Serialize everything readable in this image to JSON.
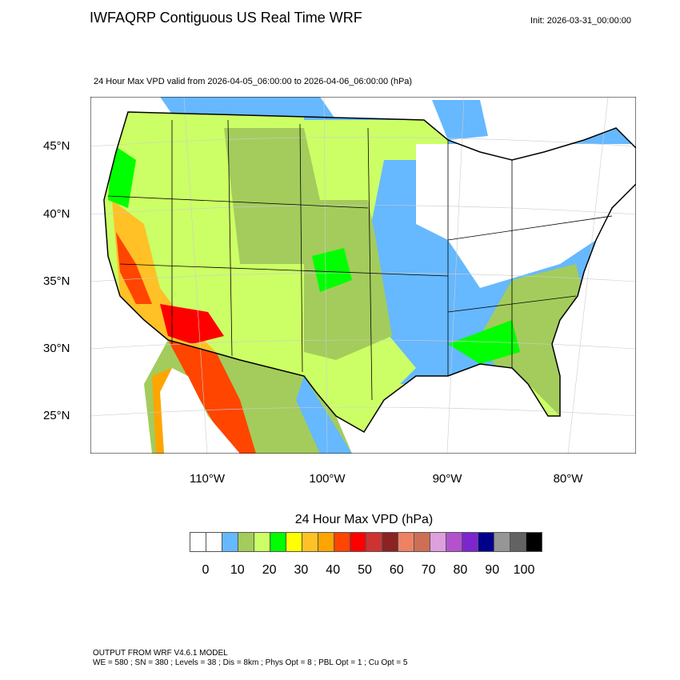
{
  "header": {
    "title": "IWFAQRP Contiguous US Real Time WRF",
    "init": "Init: 2026-03-31_00:00:00"
  },
  "subtitle": "24 Hour Max VPD valid from 2026-04-05_06:00:00 to 2026-04-06_06:00:00   (hPa)",
  "map": {
    "lat_labels": [
      "45°N",
      "40°N",
      "35°N",
      "30°N",
      "25°N"
    ],
    "lon_labels": [
      "110°W",
      "100°W",
      "90°W",
      "80°W"
    ]
  },
  "colorbar": {
    "title": "24 Hour Max VPD  (hPa)",
    "colors": [
      "#ffffff",
      "#ffffff",
      "#66b8ff",
      "#a3cc5c",
      "#ccff66",
      "#00ff00",
      "#ffff00",
      "#ffc125",
      "#ffa500",
      "#ff4500",
      "#ff0000",
      "#cd3333",
      "#8b2323",
      "#ee8262",
      "#cd6f55",
      "#dda0dd",
      "#b452cd",
      "#7d26cd",
      "#00008b",
      "#969696",
      "#626262",
      "#000000"
    ],
    "labels": [
      "0",
      "10",
      "20",
      "30",
      "40",
      "50",
      "60",
      "70",
      "80",
      "90",
      "100"
    ]
  },
  "footer": {
    "line1": "OUTPUT FROM WRF V4.6.1 MODEL",
    "line2": "WE = 580 ; SN = 380 ; Levels = 38 ; Dis = 8km ; Phys Opt = 8 ; PBL Opt = 1 ; Cu Opt = 5"
  }
}
